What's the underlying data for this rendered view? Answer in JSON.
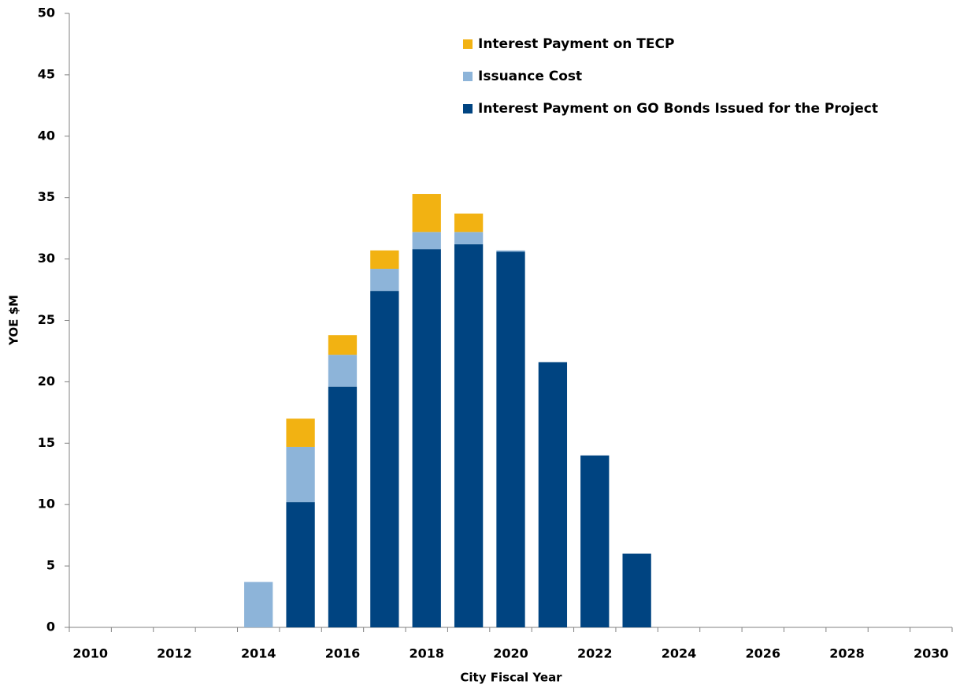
{
  "chart_data": {
    "type": "stacked-bar",
    "xlabel": "City Fiscal Year",
    "ylabel": "YOE $M",
    "categories": [
      "2010",
      null,
      "2012",
      null,
      "2014",
      null,
      "2016",
      null,
      "2018",
      null,
      "2020",
      null,
      "2022",
      null,
      "2024",
      null,
      "2026",
      null,
      "2028",
      null,
      "2030"
    ],
    "series": [
      {
        "name": "Interest Payment on GO Bonds Issued for the Project",
        "color": "#004481",
        "values": [
          null,
          null,
          null,
          null,
          null,
          10.2,
          19.6,
          27.4,
          30.8,
          31.2,
          30.6,
          21.6,
          14.0,
          6.0,
          null,
          null,
          null,
          null,
          null,
          null,
          null
        ]
      },
      {
        "name": "Issuance Cost",
        "color": "#8db4d9",
        "values": [
          null,
          null,
          null,
          null,
          3.7,
          4.5,
          2.6,
          1.8,
          1.4,
          1.0,
          0.1,
          null,
          null,
          null,
          null,
          null,
          null,
          null,
          null,
          null,
          null
        ]
      },
      {
        "name": "Interest Payment on TECP",
        "color": "#f2b212",
        "values": [
          null,
          null,
          null,
          null,
          null,
          2.3,
          1.6,
          1.5,
          3.1,
          1.5,
          null,
          null,
          null,
          null,
          null,
          null,
          null,
          null,
          null,
          null,
          null
        ]
      }
    ],
    "ylim": [
      0,
      50
    ],
    "yticks": [
      0,
      5,
      10,
      15,
      20,
      25,
      30,
      35,
      40,
      45,
      50
    ]
  }
}
